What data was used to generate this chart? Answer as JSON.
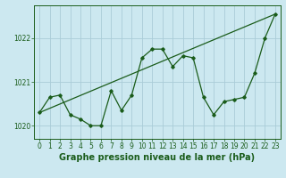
{
  "title": "Graphe pression niveau de la mer (hPa)",
  "bg_color": "#cce8f0",
  "line_color": "#1a5c1a",
  "grid_color": "#aaccd8",
  "x_ticks": [
    0,
    1,
    2,
    3,
    4,
    5,
    6,
    7,
    8,
    9,
    10,
    11,
    12,
    13,
    14,
    15,
    16,
    17,
    18,
    19,
    20,
    21,
    22,
    23
  ],
  "y_ticks": [
    1020,
    1021,
    1022
  ],
  "ylim": [
    1019.7,
    1022.75
  ],
  "xlim": [
    -0.5,
    23.5
  ],
  "series1_x": [
    0,
    1,
    2,
    3,
    4,
    5,
    6,
    7,
    8,
    9,
    10,
    11,
    12,
    13,
    14,
    15,
    16,
    17,
    18,
    19,
    20,
    21,
    22,
    23
  ],
  "series1_y": [
    1020.3,
    1020.65,
    1020.7,
    1020.25,
    1020.15,
    1020.0,
    1020.0,
    1020.8,
    1020.35,
    1020.7,
    1021.55,
    1021.75,
    1021.75,
    1021.35,
    1021.6,
    1021.55,
    1020.65,
    1020.25,
    1020.55,
    1020.6,
    1020.65,
    1021.2,
    1022.0,
    1022.55
  ],
  "series2_x": [
    0,
    23
  ],
  "series2_y": [
    1020.3,
    1022.55
  ],
  "title_fontsize": 7.0,
  "tick_fontsize": 5.5
}
